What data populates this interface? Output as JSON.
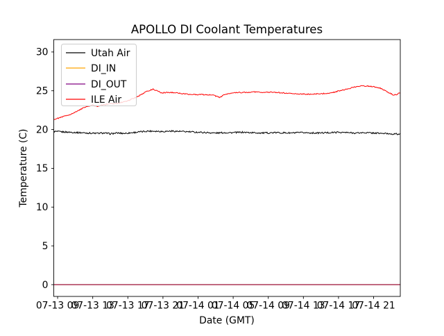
{
  "figure": {
    "title": "APOLLO DI Coolant Temperatures",
    "xlabel": "Date (GMT)",
    "ylabel": "Temperature (C)",
    "background_color": "#ffffff",
    "axes_color": "#000000"
  },
  "legend": {
    "position": "upper left",
    "border_color": "#cccccc",
    "entries": [
      {
        "label": "Utah Air",
        "color": "#000000"
      },
      {
        "label": "DI_IN",
        "color": "#ffa500"
      },
      {
        "label": "DI_OUT",
        "color": "#800080"
      },
      {
        "label": "ILE Air",
        "color": "#ff0000"
      }
    ]
  },
  "chart_data": {
    "type": "line",
    "title": "APOLLO DI Coolant Temperatures",
    "xlabel": "Date (GMT)",
    "ylabel": "Temperature (C)",
    "grid": false,
    "legend_position": "upper left",
    "x_unit": "hours since 07-13 00:00 GMT",
    "xlim": [
      8.56,
      48.04
    ],
    "ylim": [
      -1.52,
      31.6
    ],
    "x_ticks": [
      9,
      13,
      17,
      21,
      25,
      29,
      33,
      37,
      41,
      45
    ],
    "x_tick_labels": [
      "07-13 09",
      "07-13 13",
      "07-13 17",
      "07-13 21",
      "07-14 01",
      "07-14 05",
      "07-14 09",
      "07-14 13",
      "07-14 17",
      "07-14 21"
    ],
    "y_ticks": [
      0,
      5,
      10,
      15,
      20,
      25,
      30
    ],
    "series": [
      {
        "name": "Utah Air",
        "color": "#000000",
        "linewidth": 1.0,
        "noise": 0.1,
        "points": [
          [
            8.56,
            19.75
          ],
          [
            9.5,
            19.7
          ],
          [
            10.5,
            19.65
          ],
          [
            11.5,
            19.6
          ],
          [
            12.5,
            19.55
          ],
          [
            13.5,
            19.5
          ],
          [
            14.3,
            19.55
          ],
          [
            15.0,
            19.45
          ],
          [
            15.8,
            19.55
          ],
          [
            16.6,
            19.5
          ],
          [
            17.5,
            19.6
          ],
          [
            18.4,
            19.7
          ],
          [
            19.3,
            19.8
          ],
          [
            20.1,
            19.8
          ],
          [
            21.0,
            19.75
          ],
          [
            22.0,
            19.8
          ],
          [
            23.0,
            19.75
          ],
          [
            24.0,
            19.7
          ],
          [
            25.0,
            19.65
          ],
          [
            26.0,
            19.6
          ],
          [
            27.0,
            19.55
          ],
          [
            28.0,
            19.6
          ],
          [
            29.0,
            19.6
          ],
          [
            30.0,
            19.65
          ],
          [
            31.0,
            19.6
          ],
          [
            32.5,
            19.55
          ],
          [
            34.0,
            19.6
          ],
          [
            35.5,
            19.55
          ],
          [
            37.0,
            19.6
          ],
          [
            38.5,
            19.55
          ],
          [
            40.0,
            19.6
          ],
          [
            41.0,
            19.65
          ],
          [
            42.0,
            19.6
          ],
          [
            43.0,
            19.55
          ],
          [
            44.0,
            19.6
          ],
          [
            45.0,
            19.55
          ],
          [
            46.0,
            19.5
          ],
          [
            47.0,
            19.45
          ],
          [
            48.04,
            19.4
          ]
        ]
      },
      {
        "name": "DI_IN",
        "color": "#ffa500",
        "linewidth": 1.5,
        "noise": 0,
        "points": [
          [
            8.56,
            0
          ],
          [
            48.04,
            0
          ]
        ]
      },
      {
        "name": "DI_OUT",
        "color": "#800080",
        "linewidth": 1.1,
        "noise": 0,
        "points": [
          [
            8.56,
            0
          ],
          [
            48.04,
            0
          ]
        ]
      },
      {
        "name": "ILE Air",
        "color": "#ff0000",
        "linewidth": 1.0,
        "noise": 0.065,
        "points": [
          [
            8.56,
            21.3
          ],
          [
            9.2,
            21.5
          ],
          [
            10.0,
            21.8
          ],
          [
            10.8,
            22.1
          ],
          [
            11.6,
            22.6
          ],
          [
            12.3,
            22.95
          ],
          [
            13.0,
            23.15
          ],
          [
            13.5,
            23.0
          ],
          [
            14.2,
            23.2
          ],
          [
            15.0,
            23.3
          ],
          [
            15.8,
            23.4
          ],
          [
            16.5,
            23.55
          ],
          [
            17.2,
            23.8
          ],
          [
            17.9,
            24.15
          ],
          [
            18.6,
            24.55
          ],
          [
            19.3,
            25.0
          ],
          [
            19.9,
            25.2
          ],
          [
            20.4,
            24.95
          ],
          [
            20.9,
            24.7
          ],
          [
            21.5,
            24.8
          ],
          [
            22.2,
            24.75
          ],
          [
            23.0,
            24.65
          ],
          [
            24.0,
            24.55
          ],
          [
            25.0,
            24.5
          ],
          [
            26.0,
            24.5
          ],
          [
            26.8,
            24.4
          ],
          [
            27.5,
            24.15
          ],
          [
            28.0,
            24.5
          ],
          [
            28.7,
            24.7
          ],
          [
            29.5,
            24.75
          ],
          [
            30.5,
            24.8
          ],
          [
            31.5,
            24.85
          ],
          [
            32.5,
            24.8
          ],
          [
            33.5,
            24.8
          ],
          [
            34.5,
            24.75
          ],
          [
            35.5,
            24.65
          ],
          [
            36.5,
            24.6
          ],
          [
            37.5,
            24.55
          ],
          [
            38.5,
            24.6
          ],
          [
            39.5,
            24.65
          ],
          [
            40.3,
            24.75
          ],
          [
            41.1,
            25.0
          ],
          [
            41.9,
            25.2
          ],
          [
            42.7,
            25.45
          ],
          [
            43.5,
            25.6
          ],
          [
            44.3,
            25.6
          ],
          [
            45.1,
            25.5
          ],
          [
            45.7,
            25.35
          ],
          [
            46.3,
            25.0
          ],
          [
            46.8,
            24.7
          ],
          [
            47.3,
            24.45
          ],
          [
            47.7,
            24.55
          ],
          [
            48.04,
            24.75
          ]
        ]
      }
    ]
  }
}
